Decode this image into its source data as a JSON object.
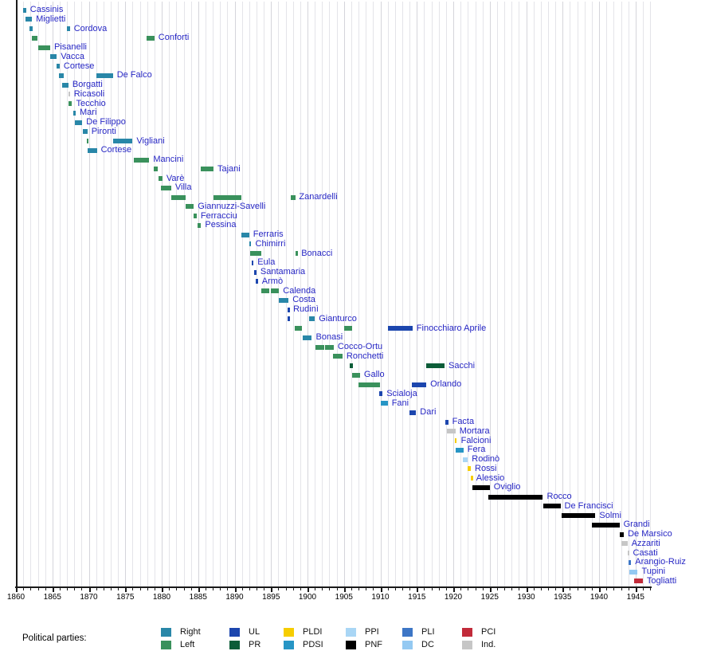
{
  "chart_data": {
    "type": "timeline",
    "description": "Gantt-style timeline of office holders colored by political party, 1860-1946",
    "x_axis": {
      "min": 1860,
      "max": 1947,
      "major_tick_step": 5,
      "minor_tick_step": 1,
      "major_ticks": [
        1860,
        1865,
        1870,
        1875,
        1880,
        1885,
        1890,
        1895,
        1900,
        1905,
        1910,
        1915,
        1920,
        1925,
        1930,
        1935,
        1940,
        1945
      ]
    },
    "parties": {
      "Right": "#2987A8",
      "Left": "#3A915C",
      "UL": "#1C46AE",
      "PR": "#0C5C38",
      "PLDI": "#F6CD00",
      "PDSI": "#2795C5",
      "PPI": "#A9D6F5",
      "PNF": "#000000",
      "PLI": "#3D76C6",
      "DC": "#94C9F2",
      "PCI": "#C22B3A",
      "Ind": "#C6C6C6"
    },
    "ministers": [
      {
        "name": "Cassinis",
        "terms": [
          [
            1861.0,
            1861.4,
            "Right"
          ]
        ]
      },
      {
        "name": "Miglietti",
        "terms": [
          [
            1861.3,
            1862.2,
            "Right"
          ]
        ]
      },
      {
        "name": "Cordova",
        "terms": [
          [
            1861.9,
            1862.3,
            "Right"
          ],
          [
            1867.0,
            1867.4,
            "Right"
          ]
        ]
      },
      {
        "name": "Conforti",
        "terms": [
          [
            1862.2,
            1863.0,
            "Left"
          ],
          [
            1877.9,
            1879.0,
            "Left"
          ]
        ]
      },
      {
        "name": "Pisanelli",
        "terms": [
          [
            1863.0,
            1864.7,
            "Left"
          ]
        ]
      },
      {
        "name": "Vacca",
        "terms": [
          [
            1864.7,
            1865.6,
            "Right"
          ]
        ]
      },
      {
        "name": "Cortese",
        "terms": [
          [
            1865.6,
            1866.0,
            "Right"
          ]
        ]
      },
      {
        "name": "De Falco",
        "terms": [
          [
            1865.9,
            1866.5,
            "Right"
          ],
          [
            1871.0,
            1873.3,
            "Right"
          ]
        ]
      },
      {
        "name": "Borgatti",
        "terms": [
          [
            1866.3,
            1867.2,
            "Right"
          ]
        ]
      },
      {
        "name": "Ricasoli",
        "terms": [
          [
            1867.2,
            1867.4,
            "Ind"
          ]
        ]
      },
      {
        "name": "Tecchio",
        "terms": [
          [
            1867.2,
            1867.7,
            "Left"
          ]
        ]
      },
      {
        "name": "Mari",
        "terms": [
          [
            1867.9,
            1868.2,
            "Right"
          ]
        ]
      },
      {
        "name": "De Filippo",
        "terms": [
          [
            1868.1,
            1869.1,
            "Right"
          ]
        ]
      },
      {
        "name": "Pironti",
        "terms": [
          [
            1869.2,
            1869.8,
            "Right"
          ]
        ]
      },
      {
        "name": "Vigliani",
        "terms": [
          [
            1869.7,
            1870.0,
            "Left"
          ],
          [
            1873.3,
            1876.0,
            "Right"
          ]
        ]
      },
      {
        "name": "Cortese",
        "terms": [
          [
            1869.8,
            1871.1,
            "Right"
          ]
        ]
      },
      {
        "name": "Mancini",
        "terms": [
          [
            1876.2,
            1878.3,
            "Left"
          ]
        ]
      },
      {
        "name": "Tajani",
        "terms": [
          [
            1878.9,
            1879.5,
            "Left"
          ],
          [
            1885.4,
            1887.1,
            "Left"
          ]
        ]
      },
      {
        "name": "Varè",
        "terms": [
          [
            1879.6,
            1880.1,
            "Left"
          ]
        ]
      },
      {
        "name": "Villa",
        "terms": [
          [
            1879.9,
            1881.3,
            "Left"
          ]
        ]
      },
      {
        "name": "Zanardelli",
        "terms": [
          [
            1881.3,
            1883.3,
            "Left"
          ],
          [
            1887.1,
            1890.9,
            "Left"
          ],
          [
            1897.7,
            1898.3,
            "Left"
          ]
        ]
      },
      {
        "name": "Giannuzzi-Savelli",
        "terms": [
          [
            1883.3,
            1884.4,
            "Left"
          ]
        ]
      },
      {
        "name": "Ferracciu",
        "terms": [
          [
            1884.4,
            1884.8,
            "Left"
          ]
        ]
      },
      {
        "name": "Pessina",
        "terms": [
          [
            1884.9,
            1885.4,
            "Left"
          ]
        ]
      },
      {
        "name": "Ferraris",
        "terms": [
          [
            1890.9,
            1892.0,
            "Right"
          ]
        ]
      },
      {
        "name": "Chimirri",
        "terms": [
          [
            1892.0,
            1892.3,
            "Right"
          ]
        ]
      },
      {
        "name": "Bonacci",
        "terms": [
          [
            1892.1,
            1893.7,
            "Left"
          ],
          [
            1898.4,
            1898.6,
            "Left"
          ]
        ]
      },
      {
        "name": "Eula",
        "terms": [
          [
            1892.3,
            1892.6,
            "UL"
          ]
        ]
      },
      {
        "name": "Santamaria",
        "terms": [
          [
            1892.7,
            1893.0,
            "UL"
          ]
        ]
      },
      {
        "name": "Armò",
        "terms": [
          [
            1892.9,
            1893.2,
            "UL"
          ]
        ]
      },
      {
        "name": "Calenda",
        "terms": [
          [
            1893.7,
            1894.8,
            "Left"
          ],
          [
            1895.0,
            1896.1,
            "Left"
          ]
        ]
      },
      {
        "name": "Costa",
        "terms": [
          [
            1896.1,
            1897.4,
            "Right"
          ]
        ]
      },
      {
        "name": "Rudinì",
        "terms": [
          [
            1897.3,
            1897.5,
            "UL"
          ]
        ]
      },
      {
        "name": "Gianturco",
        "terms": [
          [
            1897.3,
            1897.5,
            "UL"
          ],
          [
            1900.2,
            1901.0,
            "Right"
          ]
        ]
      },
      {
        "name": "Finocchiaro Aprile",
        "terms": [
          [
            1898.3,
            1899.3,
            "Left"
          ],
          [
            1905.0,
            1906.1,
            "Left"
          ],
          [
            1911.0,
            1914.4,
            "UL"
          ]
        ]
      },
      {
        "name": "Bonasi",
        "terms": [
          [
            1899.3,
            1900.6,
            "Right"
          ]
        ]
      },
      {
        "name": "Cocco-Ortu",
        "terms": [
          [
            1901.1,
            1902.3,
            "Left"
          ],
          [
            1902.4,
            1903.6,
            "Left"
          ]
        ]
      },
      {
        "name": "Ronchetti",
        "terms": [
          [
            1903.5,
            1904.8,
            "Left"
          ]
        ]
      },
      {
        "name": "Sacchi",
        "terms": [
          [
            1905.8,
            1906.2,
            "PR"
          ],
          [
            1916.3,
            1918.8,
            "PR"
          ]
        ]
      },
      {
        "name": "Gallo",
        "terms": [
          [
            1906.1,
            1907.2,
            "Left"
          ]
        ]
      },
      {
        "name": "Orlando",
        "terms": [
          [
            1907.0,
            1909.9,
            "Left"
          ],
          [
            1914.3,
            1916.3,
            "UL"
          ]
        ]
      },
      {
        "name": "Scialoja",
        "terms": [
          [
            1909.8,
            1910.3,
            "UL"
          ]
        ]
      },
      {
        "name": "Fani",
        "terms": [
          [
            1910.1,
            1911.0,
            "PDSI"
          ]
        ]
      },
      {
        "name": "Dari",
        "terms": [
          [
            1914.0,
            1914.9,
            "UL"
          ]
        ]
      },
      {
        "name": "Facta",
        "terms": [
          [
            1918.9,
            1919.3,
            "UL"
          ]
        ]
      },
      {
        "name": "Mortara",
        "terms": [
          [
            1919.1,
            1920.3,
            "Ind"
          ]
        ]
      },
      {
        "name": "Falcioni",
        "terms": [
          [
            1920.2,
            1920.5,
            "PLDI"
          ]
        ]
      },
      {
        "name": "Fera",
        "terms": [
          [
            1920.3,
            1921.4,
            "PDSI"
          ]
        ]
      },
      {
        "name": "Rodinò",
        "terms": [
          [
            1921.3,
            1922.0,
            "PPI"
          ]
        ]
      },
      {
        "name": "Rossi",
        "terms": [
          [
            1922.0,
            1922.4,
            "PLDI"
          ]
        ]
      },
      {
        "name": "Alessio",
        "terms": [
          [
            1922.4,
            1922.6,
            "PLDI"
          ]
        ]
      },
      {
        "name": "Oviglio",
        "terms": [
          [
            1922.6,
            1925.0,
            "PNF"
          ]
        ]
      },
      {
        "name": "Rocco",
        "terms": [
          [
            1924.8,
            1932.3,
            "PNF"
          ]
        ]
      },
      {
        "name": "De Francisci",
        "terms": [
          [
            1932.3,
            1934.7,
            "PNF"
          ]
        ]
      },
      {
        "name": "Solmi",
        "terms": [
          [
            1934.9,
            1939.5,
            "PNF"
          ]
        ]
      },
      {
        "name": "Grandi",
        "terms": [
          [
            1939.0,
            1942.8,
            "PNF"
          ]
        ]
      },
      {
        "name": "De Marsico",
        "terms": [
          [
            1942.8,
            1943.4,
            "PNF"
          ]
        ]
      },
      {
        "name": "Azzariti",
        "terms": [
          [
            1943.0,
            1943.9,
            "Ind"
          ]
        ]
      },
      {
        "name": "Casati",
        "terms": [
          [
            1943.9,
            1944.1,
            "Ind"
          ]
        ]
      },
      {
        "name": "Arangio-Ruiz",
        "terms": [
          [
            1944.0,
            1944.4,
            "PLI"
          ]
        ]
      },
      {
        "name": "Tupini",
        "terms": [
          [
            1944.2,
            1945.3,
            "DC"
          ]
        ]
      },
      {
        "name": "Togliatti",
        "terms": [
          [
            1944.8,
            1946.0,
            "PCI"
          ]
        ]
      }
    ]
  },
  "legend": {
    "title": "Political parties:",
    "columns": [
      {
        "top": {
          "party": "Right",
          "label": "Right"
        },
        "bottom": {
          "party": "Left",
          "label": "Left"
        }
      },
      {
        "top": {
          "party": "UL",
          "label": "UL"
        },
        "bottom": {
          "party": "PR",
          "label": "PR"
        }
      },
      {
        "top": {
          "party": "PLDI",
          "label": "PLDI"
        },
        "bottom": {
          "party": "PDSI",
          "label": "PDSI"
        }
      },
      {
        "top": {
          "party": "PPI",
          "label": "PPI"
        },
        "bottom": {
          "party": "PNF",
          "label": "PNF"
        }
      },
      {
        "top": {
          "party": "PLI",
          "label": "PLI"
        },
        "bottom": {
          "party": "DC",
          "label": "DC"
        }
      },
      {
        "top": {
          "party": "PCI",
          "label": "PCI"
        },
        "bottom": {
          "party": "Ind",
          "label": "Ind."
        }
      }
    ]
  }
}
